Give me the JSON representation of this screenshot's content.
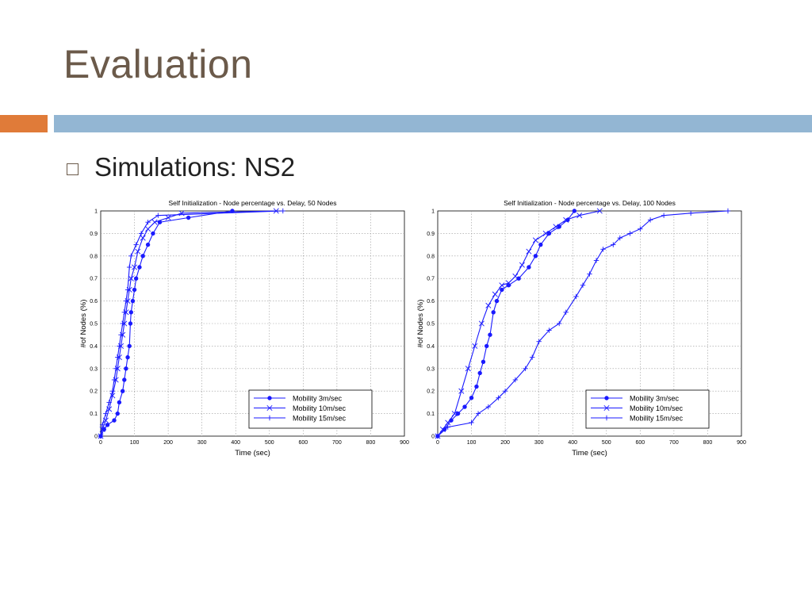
{
  "slide": {
    "title": "Evaluation",
    "bullet": "Simulations: NS2",
    "colors": {
      "title": "#6b5a4a",
      "accent_orange": "#e07b39",
      "accent_blue": "#93b6d3",
      "series": "#1a1aff"
    }
  },
  "chart_data": [
    {
      "type": "line",
      "title": "Self Initialization - Node percentage vs. Delay, 50 Nodes",
      "xlabel": "Time (sec)",
      "ylabel": "#of Nodes (%)",
      "xlim": [
        0,
        900
      ],
      "ylim": [
        0,
        1
      ],
      "xticks": [
        "0",
        "100",
        "200",
        "300",
        "400",
        "500",
        "600",
        "700",
        "800",
        "900"
      ],
      "yticks": [
        "0",
        "0.1",
        "0.2",
        "0.3",
        "0.4",
        "0.5",
        "0.6",
        "0.7",
        "0.8",
        "0.9",
        "1"
      ],
      "grid": true,
      "legend_position": "bottom-right",
      "series": [
        {
          "name": "Mobility 3m/sec",
          "marker": "*",
          "points": [
            [
              0,
              0
            ],
            [
              10,
              0.03
            ],
            [
              20,
              0.05
            ],
            [
              40,
              0.07
            ],
            [
              50,
              0.1
            ],
            [
              55,
              0.15
            ],
            [
              65,
              0.2
            ],
            [
              70,
              0.25
            ],
            [
              75,
              0.3
            ],
            [
              80,
              0.35
            ],
            [
              85,
              0.4
            ],
            [
              88,
              0.5
            ],
            [
              90,
              0.55
            ],
            [
              95,
              0.6
            ],
            [
              100,
              0.65
            ],
            [
              105,
              0.7
            ],
            [
              115,
              0.75
            ],
            [
              125,
              0.8
            ],
            [
              140,
              0.85
            ],
            [
              155,
              0.9
            ],
            [
              175,
              0.95
            ],
            [
              260,
              0.97
            ],
            [
              390,
              1.0
            ]
          ]
        },
        {
          "name": "Mobility 10m/sec",
          "marker": "x",
          "points": [
            [
              0,
              0
            ],
            [
              5,
              0.03
            ],
            [
              15,
              0.07
            ],
            [
              25,
              0.12
            ],
            [
              35,
              0.18
            ],
            [
              45,
              0.25
            ],
            [
              50,
              0.3
            ],
            [
              55,
              0.35
            ],
            [
              60,
              0.4
            ],
            [
              65,
              0.45
            ],
            [
              70,
              0.5
            ],
            [
              75,
              0.55
            ],
            [
              80,
              0.6
            ],
            [
              85,
              0.65
            ],
            [
              90,
              0.7
            ],
            [
              100,
              0.75
            ],
            [
              110,
              0.82
            ],
            [
              125,
              0.88
            ],
            [
              140,
              0.92
            ],
            [
              160,
              0.95
            ],
            [
              200,
              0.97
            ],
            [
              240,
              0.99
            ],
            [
              520,
              1.0
            ]
          ]
        },
        {
          "name": "Mobility 15m/sec",
          "marker": "+",
          "points": [
            [
              0,
              0
            ],
            [
              5,
              0.05
            ],
            [
              15,
              0.1
            ],
            [
              25,
              0.15
            ],
            [
              35,
              0.2
            ],
            [
              40,
              0.25
            ],
            [
              45,
              0.3
            ],
            [
              50,
              0.35
            ],
            [
              55,
              0.4
            ],
            [
              60,
              0.45
            ],
            [
              65,
              0.5
            ],
            [
              70,
              0.55
            ],
            [
              75,
              0.6
            ],
            [
              80,
              0.65
            ],
            [
              85,
              0.75
            ],
            [
              90,
              0.8
            ],
            [
              105,
              0.85
            ],
            [
              120,
              0.9
            ],
            [
              140,
              0.95
            ],
            [
              170,
              0.98
            ],
            [
              540,
              1.0
            ]
          ]
        }
      ]
    },
    {
      "type": "line",
      "title": "Self Initialization - Node percentage vs. Delay, 100 Nodes",
      "xlabel": "Time (sec)",
      "ylabel": "#of Nodes (%)",
      "xlim": [
        0,
        900
      ],
      "ylim": [
        0,
        1
      ],
      "xticks": [
        "0",
        "100",
        "200",
        "300",
        "400",
        "500",
        "600",
        "700",
        "800",
        "900"
      ],
      "yticks": [
        "0",
        "0.1",
        "0.2",
        "0.3",
        "0.4",
        "0.5",
        "0.6",
        "0.7",
        "0.8",
        "0.9",
        "1"
      ],
      "grid": true,
      "legend_position": "bottom-right",
      "series": [
        {
          "name": "Mobility 3m/sec",
          "marker": "*",
          "points": [
            [
              0,
              0
            ],
            [
              20,
              0.03
            ],
            [
              40,
              0.07
            ],
            [
              60,
              0.1
            ],
            [
              80,
              0.13
            ],
            [
              100,
              0.17
            ],
            [
              115,
              0.22
            ],
            [
              125,
              0.28
            ],
            [
              135,
              0.33
            ],
            [
              145,
              0.4
            ],
            [
              155,
              0.45
            ],
            [
              165,
              0.55
            ],
            [
              175,
              0.6
            ],
            [
              190,
              0.65
            ],
            [
              210,
              0.67
            ],
            [
              240,
              0.7
            ],
            [
              270,
              0.75
            ],
            [
              290,
              0.8
            ],
            [
              305,
              0.85
            ],
            [
              330,
              0.9
            ],
            [
              360,
              0.93
            ],
            [
              385,
              0.96
            ],
            [
              405,
              1.0
            ]
          ]
        },
        {
          "name": "Mobility 10m/sec",
          "marker": "x",
          "points": [
            [
              0,
              0
            ],
            [
              15,
              0.03
            ],
            [
              30,
              0.06
            ],
            [
              50,
              0.1
            ],
            [
              70,
              0.2
            ],
            [
              90,
              0.3
            ],
            [
              110,
              0.4
            ],
            [
              130,
              0.5
            ],
            [
              150,
              0.58
            ],
            [
              170,
              0.63
            ],
            [
              190,
              0.67
            ],
            [
              210,
              0.68
            ],
            [
              230,
              0.71
            ],
            [
              250,
              0.76
            ],
            [
              270,
              0.82
            ],
            [
              290,
              0.87
            ],
            [
              320,
              0.9
            ],
            [
              350,
              0.93
            ],
            [
              380,
              0.96
            ],
            [
              420,
              0.98
            ],
            [
              480,
              1.0
            ]
          ]
        },
        {
          "name": "Mobility 15m/sec",
          "marker": "+",
          "points": [
            [
              0,
              0
            ],
            [
              30,
              0.04
            ],
            [
              100,
              0.06
            ],
            [
              120,
              0.1
            ],
            [
              150,
              0.13
            ],
            [
              180,
              0.17
            ],
            [
              200,
              0.2
            ],
            [
              230,
              0.25
            ],
            [
              260,
              0.3
            ],
            [
              280,
              0.35
            ],
            [
              300,
              0.42
            ],
            [
              330,
              0.47
            ],
            [
              360,
              0.5
            ],
            [
              380,
              0.55
            ],
            [
              410,
              0.62
            ],
            [
              430,
              0.67
            ],
            [
              450,
              0.72
            ],
            [
              470,
              0.78
            ],
            [
              490,
              0.83
            ],
            [
              520,
              0.85
            ],
            [
              540,
              0.88
            ],
            [
              570,
              0.9
            ],
            [
              600,
              0.92
            ],
            [
              630,
              0.96
            ],
            [
              670,
              0.98
            ],
            [
              750,
              0.99
            ],
            [
              860,
              1.0
            ]
          ]
        }
      ]
    }
  ]
}
